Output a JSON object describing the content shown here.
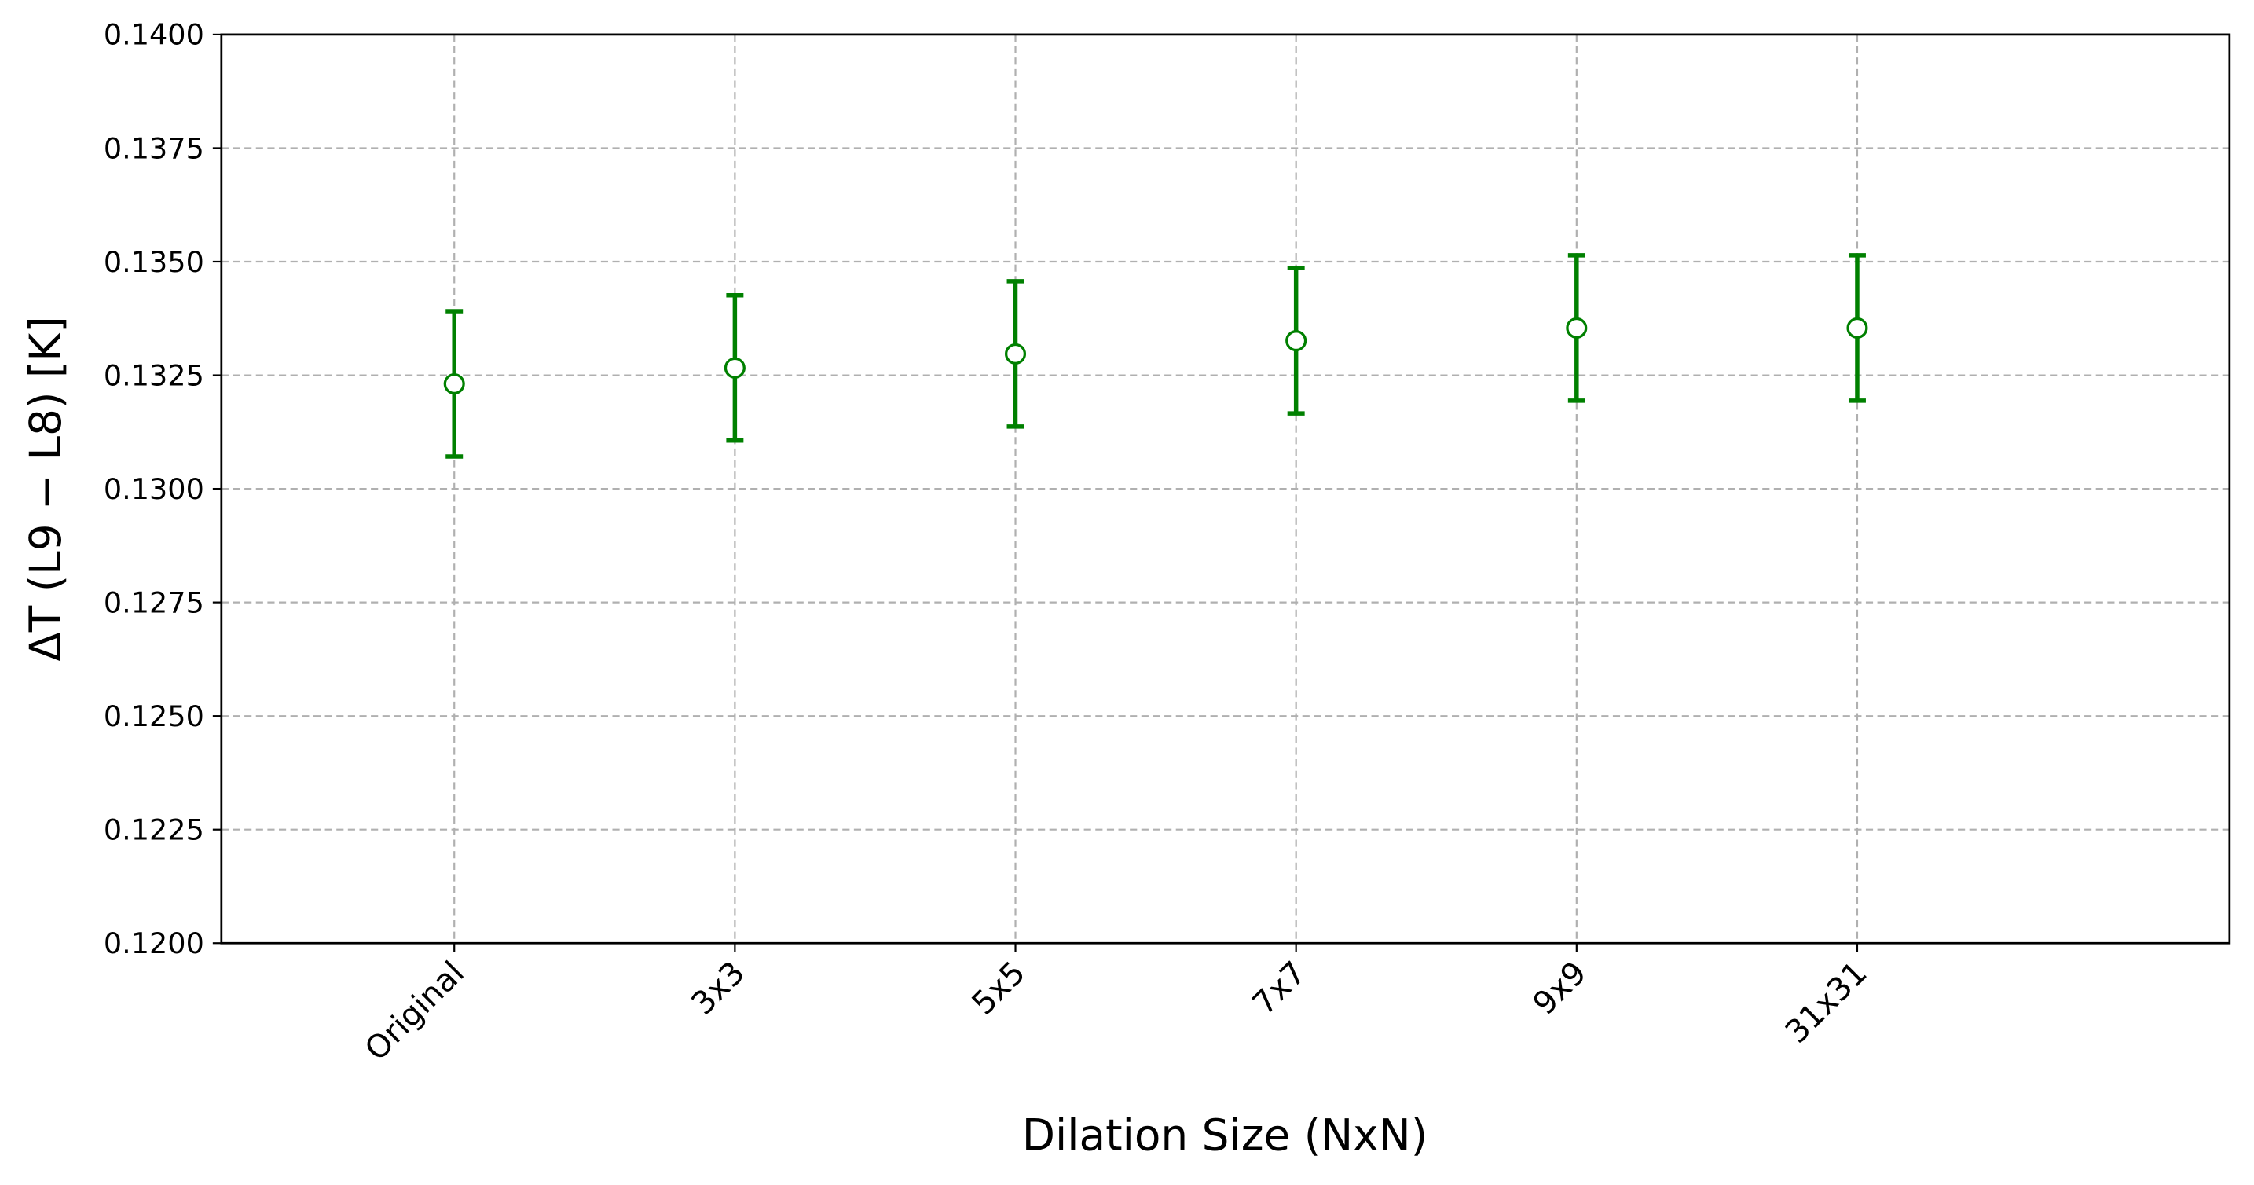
{
  "chart_data": {
    "type": "errorbar",
    "x_label": "Dilation Size (NxN)",
    "y_label": "ΔT (L9 − L8) [K]",
    "categories": [
      "Original",
      "3x3",
      "5x5",
      "7x7",
      "9x9",
      "31x31"
    ],
    "series": [
      {
        "color": "#008000",
        "values": [
          0.13231,
          0.13266,
          0.13297,
          0.13326,
          0.13354,
          0.13354
        ],
        "errors": [
          0.0016,
          0.0016,
          0.0016,
          0.0016,
          0.0016,
          0.0016
        ]
      }
    ],
    "ylim": [
      0.12,
      0.14
    ],
    "yticks": [
      {
        "value": 0.12,
        "label": "0.1200"
      },
      {
        "value": 0.1225,
        "label": "0.1225"
      },
      {
        "value": 0.125,
        "label": "0.1250"
      },
      {
        "value": 0.1275,
        "label": "0.1275"
      },
      {
        "value": 0.13,
        "label": "0.1300"
      },
      {
        "value": 0.1325,
        "label": "0.1325"
      },
      {
        "value": 0.135,
        "label": "0.1350"
      },
      {
        "value": 0.1375,
        "label": "0.1375"
      },
      {
        "value": 0.14,
        "label": "0.1400"
      }
    ],
    "grid": true
  }
}
